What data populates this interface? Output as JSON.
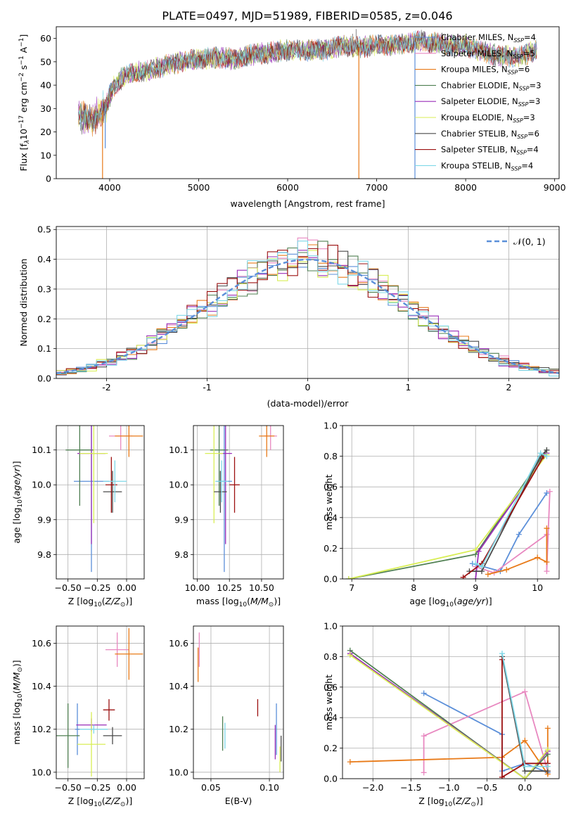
{
  "figure": {
    "title": "PLATE=0497, MJD=51989, FIBERID=0585, z=0.046"
  },
  "colors": {
    "chab_miles": "#5b8fd9",
    "salp_miles": "#e888c0",
    "krou_miles": "#e87a18",
    "chab_elodie": "#4f7f52",
    "salp_elodie": "#9a2fb8",
    "krou_elodie": "#d8ee55",
    "chab_stelib": "#4a4a4a",
    "salp_stelib": "#9c1010",
    "krou_stelib": "#7fd8e8",
    "normal": "#5b8fd9"
  },
  "chart_data": [
    {
      "id": "spectrum",
      "type": "line",
      "xlabel": "wavelength [Angstrom, rest frame]",
      "ylabel": "Flux [f",
      "ylabel_parts": [
        "Flux [f",
        "λ",
        "10",
        "−17",
        " erg cm",
        "−2",
        " s",
        "−1",
        " A",
        "−1",
        "]"
      ],
      "xlim": [
        3400,
        9050
      ],
      "ylim": [
        0,
        65
      ],
      "xticks": [
        4000,
        5000,
        6000,
        7000,
        8000,
        9000
      ],
      "yticks": [
        0,
        10,
        20,
        30,
        40,
        50,
        60
      ],
      "grid": false,
      "legend_position": "top-right",
      "x_range_data": [
        3650,
        8800
      ],
      "continuum": [
        [
          3650,
          27
        ],
        [
          3800,
          25
        ],
        [
          3950,
          30
        ],
        [
          4050,
          40
        ],
        [
          4200,
          45
        ],
        [
          4400,
          46
        ],
        [
          4600,
          48
        ],
        [
          4800,
          50
        ],
        [
          5000,
          51
        ],
        [
          5200,
          52
        ],
        [
          5400,
          51
        ],
        [
          5600,
          53
        ],
        [
          5800,
          54
        ],
        [
          6000,
          55
        ],
        [
          6200,
          55
        ],
        [
          6400,
          55
        ],
        [
          6600,
          57
        ],
        [
          6800,
          56
        ],
        [
          7000,
          57
        ],
        [
          7200,
          57
        ],
        [
          7500,
          59
        ],
        [
          7800,
          57
        ],
        [
          8000,
          57
        ],
        [
          8300,
          53
        ],
        [
          8600,
          52
        ],
        [
          8800,
          55
        ]
      ],
      "spikes_down": [
        [
          3920,
          0
        ],
        [
          4300,
          43
        ],
        [
          6800,
          0
        ],
        [
          7430,
          0
        ],
        [
          3950,
          13
        ]
      ],
      "spikes_up": [
        [
          6730,
          62
        ],
        [
          6770,
          64
        ]
      ],
      "series": [
        {
          "name": "Chabrier MILES, N",
          "sub": "SSP",
          "eq": "=4",
          "color_key": "chab_miles"
        },
        {
          "name": "Salpeter MILES, N",
          "sub": "SSP",
          "eq": "=5",
          "color_key": "salp_miles"
        },
        {
          "name": "Kroupa MILES, N",
          "sub": "SSP",
          "eq": "=6",
          "color_key": "krou_miles"
        },
        {
          "name": "Chabrier ELODIE, N",
          "sub": "SSP",
          "eq": "=3",
          "color_key": "chab_elodie"
        },
        {
          "name": "Salpeter ELODIE, N",
          "sub": "SSP",
          "eq": "=3",
          "color_key": "salp_elodie"
        },
        {
          "name": "Kroupa ELODIE, N",
          "sub": "SSP",
          "eq": "=3",
          "color_key": "krou_elodie"
        },
        {
          "name": "Chabrier STELIB, N",
          "sub": "SSP",
          "eq": "=6",
          "color_key": "chab_stelib"
        },
        {
          "name": "Salpeter STELIB, N",
          "sub": "SSP",
          "eq": "=4",
          "color_key": "salp_stelib"
        },
        {
          "name": "Kroupa STELIB, N",
          "sub": "SSP",
          "eq": "=4",
          "color_key": "krou_stelib"
        }
      ]
    },
    {
      "id": "residuals",
      "type": "line",
      "xlabel": "(data-model)/error",
      "ylabel": "Normed distribution",
      "xlim": [
        -2.5,
        2.5
      ],
      "ylim": [
        0,
        0.51
      ],
      "xticks": [
        -2,
        -1,
        0,
        1,
        2
      ],
      "yticks": [
        0.0,
        0.1,
        0.2,
        0.3,
        0.4,
        0.5
      ],
      "grid": true,
      "legend_position": "top-right",
      "legend_label": "𝒩(0, 1)",
      "bin_width": 0.1
    },
    {
      "id": "age_vs_Z",
      "type": "scatter",
      "xlabel": "Z [log10(Z/Z⊙)]",
      "ylabel": "age  [log10(age/yr)]",
      "xlim": [
        -0.6,
        0.15
      ],
      "ylim": [
        9.73,
        10.17
      ],
      "xticks": [
        -0.5,
        -0.25,
        0.0
      ],
      "xticklabels": [
        "−0.50",
        "−0.25",
        "0.00"
      ],
      "yticks": [
        9.8,
        9.9,
        10.0,
        10.1
      ],
      "grid": true,
      "points": [
        {
          "c": "chab_miles",
          "x": -0.3,
          "y": 10.01,
          "xe": 0.15,
          "ye": 0.26
        },
        {
          "c": "salp_miles",
          "x": -0.05,
          "y": 10.14,
          "xe": 0.1,
          "ye": 0.04
        },
        {
          "c": "krou_miles",
          "x": 0.02,
          "y": 10.14,
          "xe": 0.12,
          "ye": 0.06
        },
        {
          "c": "chab_elodie",
          "x": -0.4,
          "y": 10.1,
          "xe": 0.12,
          "ye": 0.16
        },
        {
          "c": "salp_elodie",
          "x": -0.3,
          "y": 10.09,
          "xe": 0.12,
          "ye": 0.26
        },
        {
          "c": "krou_elodie",
          "x": -0.28,
          "y": 10.09,
          "xe": 0.12,
          "ye": 0.2
        },
        {
          "c": "chab_stelib",
          "x": -0.12,
          "y": 9.98,
          "xe": 0.08,
          "ye": 0.06
        },
        {
          "c": "salp_stelib",
          "x": -0.13,
          "y": 10.0,
          "xe": 0.05,
          "ye": 0.08
        },
        {
          "c": "krou_stelib",
          "x": -0.1,
          "y": 10.01,
          "xe": 0.1,
          "ye": 0.06
        }
      ]
    },
    {
      "id": "age_vs_mass",
      "type": "scatter",
      "xlabel": "mass [log10(M/M⊙)]",
      "ylabel": "",
      "xlim": [
        9.97,
        10.67
      ],
      "ylim": [
        9.73,
        10.17
      ],
      "xticks": [
        10.0,
        10.25,
        10.5
      ],
      "xticklabels": [
        "10.00",
        "10.25",
        "10.50"
      ],
      "yticks": [
        9.8,
        9.9,
        10.0,
        10.1
      ],
      "grid": true,
      "points": [
        {
          "c": "chab_miles",
          "x": 10.21,
          "y": 10.01,
          "xe": 0.06,
          "ye": 0.26
        },
        {
          "c": "salp_miles",
          "x": 10.57,
          "y": 10.14,
          "xe": 0.05,
          "ye": 0.04
        },
        {
          "c": "krou_miles",
          "x": 10.54,
          "y": 10.14,
          "xe": 0.06,
          "ye": 0.06
        },
        {
          "c": "chab_elodie",
          "x": 10.17,
          "y": 10.1,
          "xe": 0.07,
          "ye": 0.16
        },
        {
          "c": "salp_elodie",
          "x": 10.22,
          "y": 10.09,
          "xe": 0.05,
          "ye": 0.26
        },
        {
          "c": "krou_elodie",
          "x": 10.13,
          "y": 10.09,
          "xe": 0.07,
          "ye": 0.2
        },
        {
          "c": "chab_stelib",
          "x": 10.18,
          "y": 9.98,
          "xe": 0.05,
          "ye": 0.06
        },
        {
          "c": "salp_stelib",
          "x": 10.29,
          "y": 10.0,
          "xe": 0.04,
          "ye": 0.08
        },
        {
          "c": "krou_stelib",
          "x": 10.19,
          "y": 10.01,
          "xe": 0.05,
          "ye": 0.06
        }
      ]
    },
    {
      "id": "weight_vs_age",
      "type": "line",
      "xlabel": "age  [log10(age/yr)]",
      "ylabel": "mass weight",
      "xlim": [
        6.85,
        10.35
      ],
      "ylim": [
        0,
        1.0
      ],
      "xticks": [
        7,
        8,
        9,
        10
      ],
      "yticks": [
        0.0,
        0.2,
        0.4,
        0.6,
        0.8,
        1.0
      ],
      "grid": true,
      "series": [
        {
          "c": "chab_miles",
          "pts": [
            [
              8.95,
              0.1
            ],
            [
              9.4,
              0.05
            ],
            [
              9.7,
              0.29
            ],
            [
              10.15,
              0.56
            ]
          ]
        },
        {
          "c": "salp_miles",
          "pts": [
            [
              9.0,
              0.08
            ],
            [
              9.3,
              0.04
            ],
            [
              10.15,
              0.29
            ],
            [
              10.15,
              0.05
            ],
            [
              10.2,
              0.57
            ]
          ]
        },
        {
          "c": "krou_miles",
          "pts": [
            [
              9.2,
              0.03
            ],
            [
              9.5,
              0.06
            ],
            [
              10.0,
              0.14
            ],
            [
              10.15,
              0.11
            ],
            [
              10.15,
              0.33
            ]
          ]
        },
        {
          "c": "chab_elodie",
          "pts": [
            [
              6.95,
              0.0
            ],
            [
              9.0,
              0.16
            ],
            [
              10.15,
              0.84
            ]
          ]
        },
        {
          "c": "salp_elodie",
          "pts": [
            [
              9.0,
              0.0
            ],
            [
              9.05,
              0.18
            ],
            [
              10.15,
              0.82
            ]
          ]
        },
        {
          "c": "krou_elodie",
          "pts": [
            [
              6.95,
              0.0
            ],
            [
              9.0,
              0.19
            ],
            [
              10.15,
              0.81
            ]
          ]
        },
        {
          "c": "chab_stelib",
          "pts": [
            [
              8.9,
              0.05
            ],
            [
              9.1,
              0.05
            ],
            [
              10.05,
              0.8
            ],
            [
              10.15,
              0.84
            ]
          ]
        },
        {
          "c": "salp_stelib",
          "pts": [
            [
              8.8,
              0.01
            ],
            [
              9.1,
              0.1
            ],
            [
              10.1,
              0.8
            ]
          ]
        },
        {
          "c": "krou_stelib",
          "pts": [
            [
              9.0,
              0.1
            ],
            [
              9.1,
              0.08
            ],
            [
              10.05,
              0.82
            ],
            [
              10.15,
              0.8
            ]
          ]
        }
      ]
    },
    {
      "id": "mass_vs_Z",
      "type": "scatter",
      "xlabel": "Z [log10(Z/Z⊙)]",
      "ylabel": "mass [log10(M/M⊙)]",
      "xlim": [
        -0.6,
        0.15
      ],
      "ylim": [
        9.97,
        10.68
      ],
      "xticks": [
        -0.5,
        -0.25,
        0.0
      ],
      "xticklabels": [
        "−0.50",
        "−0.25",
        "0.00"
      ],
      "yticks": [
        10.0,
        10.2,
        10.4,
        10.6
      ],
      "grid": true,
      "points": [
        {
          "c": "chab_miles",
          "x": -0.42,
          "y": 10.2,
          "xe": 0.02,
          "ye": 0.12
        },
        {
          "c": "salp_miles",
          "x": -0.08,
          "y": 10.57,
          "xe": 0.1,
          "ye": 0.08
        },
        {
          "c": "krou_miles",
          "x": 0.02,
          "y": 10.55,
          "xe": 0.12,
          "ye": 0.12
        },
        {
          "c": "chab_elodie",
          "x": -0.5,
          "y": 10.17,
          "xe": 0.1,
          "ye": 0.15
        },
        {
          "c": "salp_elodie",
          "x": -0.3,
          "y": 10.22,
          "xe": 0.13,
          "ye": 0.03
        },
        {
          "c": "krou_elodie",
          "x": -0.3,
          "y": 10.13,
          "xe": 0.12,
          "ye": 0.15
        },
        {
          "c": "chab_stelib",
          "x": -0.12,
          "y": 10.17,
          "xe": 0.08,
          "ye": 0.04
        },
        {
          "c": "salp_stelib",
          "x": -0.15,
          "y": 10.29,
          "xe": 0.05,
          "ye": 0.05
        },
        {
          "c": "krou_stelib",
          "x": -0.28,
          "y": 10.2,
          "xe": 0.12,
          "ye": 0.02
        }
      ]
    },
    {
      "id": "mass_vs_ebv",
      "type": "scatter",
      "xlabel": "E(B-V)",
      "ylabel": "",
      "xlim": [
        0.035,
        0.112
      ],
      "ylim": [
        9.97,
        10.68
      ],
      "xticks": [
        0.05,
        0.1
      ],
      "xticklabels": [
        "0.05",
        "0.10"
      ],
      "yticks": [
        10.0,
        10.2,
        10.4,
        10.6
      ],
      "grid": true,
      "points": [
        {
          "c": "chab_miles",
          "x": 0.106,
          "y": 10.2,
          "xe": 0,
          "ye": 0.12
        },
        {
          "c": "salp_miles",
          "x": 0.04,
          "y": 10.57,
          "xe": 0,
          "ye": 0.08
        },
        {
          "c": "krou_miles",
          "x": 0.039,
          "y": 10.5,
          "xe": 0,
          "ye": 0.08
        },
        {
          "c": "chab_elodie",
          "x": 0.06,
          "y": 10.18,
          "xe": 0,
          "ye": 0.08
        },
        {
          "c": "salp_elodie",
          "x": 0.105,
          "y": 10.14,
          "xe": 0,
          "ye": 0.08
        },
        {
          "c": "krou_elodie",
          "x": 0.109,
          "y": 10.06,
          "xe": 0,
          "ye": 0.06
        },
        {
          "c": "chab_stelib",
          "x": 0.11,
          "y": 10.11,
          "xe": 0,
          "ye": 0.06
        },
        {
          "c": "salp_stelib",
          "x": 0.09,
          "y": 10.3,
          "xe": 0,
          "ye": 0.04
        },
        {
          "c": "krou_stelib",
          "x": 0.062,
          "y": 10.17,
          "xe": 0,
          "ye": 0.06
        }
      ]
    },
    {
      "id": "weight_vs_Z",
      "type": "line",
      "xlabel": "Z [log10(Z/Z⊙)]",
      "ylabel": "mass weight",
      "xlim": [
        -2.4,
        0.45
      ],
      "ylim": [
        0,
        1.0
      ],
      "xticks": [
        -2.0,
        -1.5,
        -1.0,
        -0.5,
        0.0
      ],
      "xticklabels": [
        "−2.0",
        "−1.5",
        "−1.0",
        "−0.5",
        "0.0"
      ],
      "yticks": [
        0.0,
        0.2,
        0.4,
        0.6,
        0.8,
        1.0
      ],
      "grid": true,
      "series": [
        {
          "c": "chab_miles",
          "pts": [
            [
              -1.33,
              0.56
            ],
            [
              -0.3,
              0.29
            ],
            [
              -0.3,
              0.05
            ],
            [
              0.0,
              0.1
            ],
            [
              0.3,
              0.04
            ]
          ]
        },
        {
          "c": "salp_miles",
          "pts": [
            [
              -1.33,
              0.04
            ],
            [
              -1.33,
              0.28
            ],
            [
              0.0,
              0.57
            ],
            [
              0.3,
              0.05
            ],
            [
              0.3,
              0.1
            ]
          ]
        },
        {
          "c": "krou_miles",
          "pts": [
            [
              -2.3,
              0.11
            ],
            [
              -0.3,
              0.14
            ],
            [
              0.0,
              0.25
            ],
            [
              0.3,
              0.03
            ],
            [
              0.3,
              0.33
            ]
          ]
        },
        {
          "c": "chab_elodie",
          "pts": [
            [
              -2.3,
              0.84
            ],
            [
              0.0,
              0.0
            ],
            [
              0.3,
              0.16
            ]
          ]
        },
        {
          "c": "salp_elodie",
          "pts": [
            [
              -2.3,
              0.82
            ],
            [
              0.0,
              0.0
            ],
            [
              0.3,
              0.18
            ]
          ]
        },
        {
          "c": "krou_elodie",
          "pts": [
            [
              -2.3,
              0.81
            ],
            [
              0.0,
              0.0
            ],
            [
              0.3,
              0.19
            ]
          ]
        },
        {
          "c": "chab_stelib",
          "pts": [
            [
              -0.3,
              0.8
            ],
            [
              0.0,
              0.05
            ],
            [
              0.3,
              0.05
            ]
          ]
        },
        {
          "c": "salp_stelib",
          "pts": [
            [
              -0.3,
              0.78
            ],
            [
              -0.3,
              0.01
            ],
            [
              0.0,
              0.1
            ],
            [
              0.3,
              0.1
            ]
          ]
        },
        {
          "c": "krou_stelib",
          "pts": [
            [
              -0.3,
              0.82
            ],
            [
              0.0,
              0.08
            ],
            [
              0.3,
              0.08
            ]
          ]
        }
      ]
    }
  ]
}
